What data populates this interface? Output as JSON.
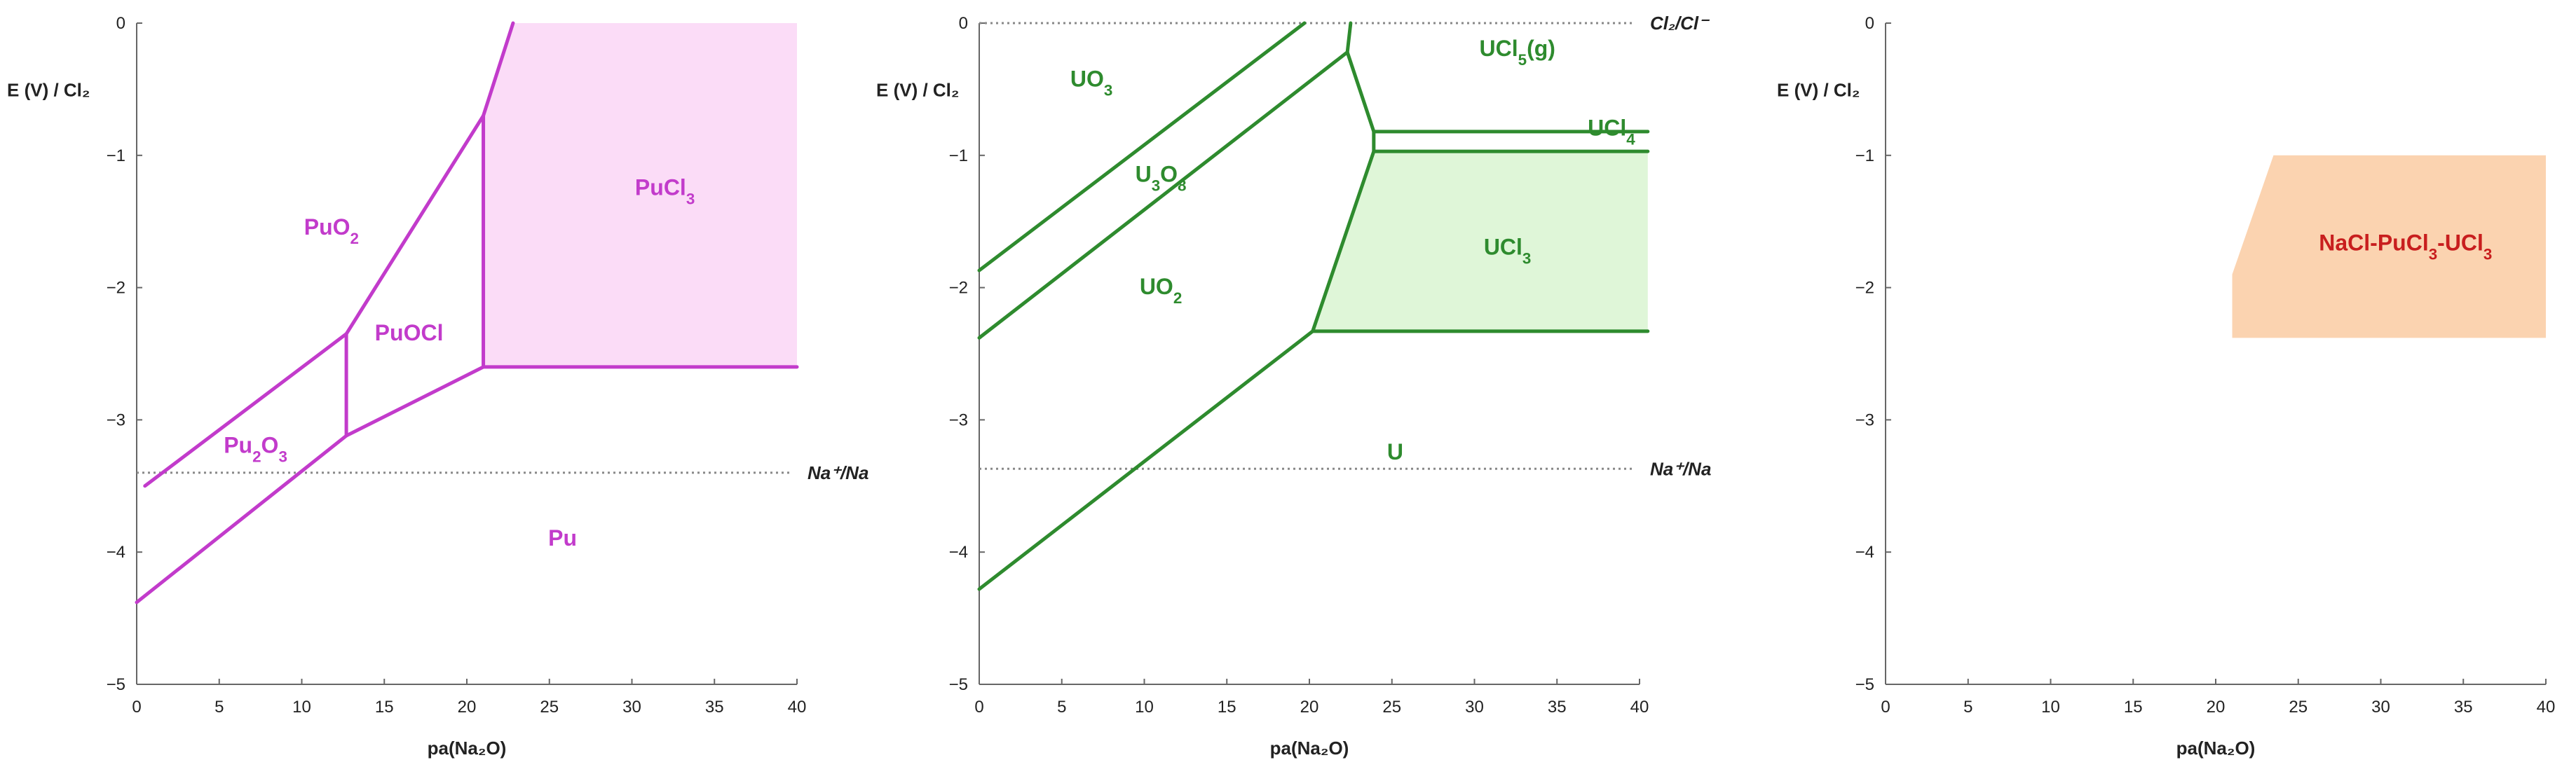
{
  "colors": {
    "pu": "#c23bcb",
    "pu_fill": "#fbdcf7",
    "u": "#2e8b2e",
    "u_fill": "#dff6d8",
    "salt_fill": "#fbd3b0",
    "salt_text": "#c81e1e",
    "axis": "#666666",
    "dotted": "#888888"
  },
  "chart_data": [
    {
      "type": "line",
      "name": "Pu",
      "xlabel": "pa(Na₂O)",
      "ylabel": "E (V) / Cl₂",
      "xlim": [
        0,
        40
      ],
      "ylim": [
        -5,
        0
      ],
      "xticks": [
        "0",
        "5",
        "10",
        "15",
        "20",
        "25",
        "30",
        "35",
        "40"
      ],
      "yticks": [
        "0",
        "−1",
        "−2",
        "−3",
        "−4",
        "−5"
      ],
      "reference_lines": [
        {
          "y": -3.4,
          "label": "Na⁺/Na"
        }
      ],
      "stable_region": {
        "points": [
          [
            21,
            -0.7
          ],
          [
            22.8,
            0
          ],
          [
            40,
            0
          ],
          [
            40,
            -2.6
          ],
          [
            21,
            -2.6
          ]
        ]
      },
      "boundaries": [
        {
          "points": [
            [
              0.5,
              -3.5
            ],
            [
              12.7,
              -2.35
            ],
            [
              21,
              -0.7
            ],
            [
              22.8,
              0
            ]
          ]
        },
        {
          "points": [
            [
              12.7,
              -2.35
            ],
            [
              12.7,
              -3.12
            ]
          ]
        },
        {
          "points": [
            [
              0,
              -4.38
            ],
            [
              12.7,
              -3.12
            ],
            [
              21,
              -2.6
            ],
            [
              40,
              -2.6
            ]
          ]
        },
        {
          "points": [
            [
              21,
              -0.7
            ],
            [
              21,
              -2.6
            ]
          ]
        }
      ],
      "regions": [
        {
          "label": "PuO",
          "sub": "2",
          "x": 11.8,
          "y": -1.6
        },
        {
          "label": "PuCl",
          "sub": "3",
          "x": 32,
          "y": -1.3
        },
        {
          "label": "PuOCl",
          "sub": "",
          "x": 16.5,
          "y": -2.4
        },
        {
          "label": "Pu",
          "sub": "2",
          "label2": "O",
          "sub2": "3",
          "x": 7.2,
          "y": -3.25
        },
        {
          "label": "Pu",
          "sub": "",
          "x": 25.8,
          "y": -3.95
        }
      ]
    },
    {
      "type": "line",
      "name": "U",
      "xlabel": "pa(Na₂O)",
      "ylabel": "E (V) / Cl₂",
      "xlim": [
        0,
        40
      ],
      "ylim": [
        -5,
        0
      ],
      "xticks": [
        "0",
        "5",
        "10",
        "15",
        "20",
        "25",
        "30",
        "35",
        "40"
      ],
      "yticks": [
        "0",
        "−1",
        "−2",
        "−3",
        "−4",
        "−5"
      ],
      "reference_lines": [
        {
          "y": 0,
          "label": "Cl₂/Cl⁻"
        },
        {
          "y": -3.37,
          "label": "Na⁺/Na"
        }
      ],
      "stable_region": {
        "points": [
          [
            23.9,
            -0.97
          ],
          [
            40.5,
            -0.97
          ],
          [
            40.5,
            -2.33
          ],
          [
            20.2,
            -2.33
          ]
        ]
      },
      "boundaries": [
        {
          "points": [
            [
              0,
              -1.87
            ],
            [
              19.7,
              0
            ]
          ]
        },
        {
          "points": [
            [
              0,
              -2.38
            ],
            [
              22.3,
              -0.22
            ],
            [
              22.5,
              0
            ]
          ]
        },
        {
          "points": [
            [
              22.3,
              -0.22
            ],
            [
              23.9,
              -0.82
            ],
            [
              23.9,
              -0.97
            ],
            [
              20.2,
              -2.33
            ],
            [
              0,
              -4.28
            ]
          ]
        },
        {
          "points": [
            [
              23.9,
              -0.82
            ],
            [
              40.5,
              -0.82
            ]
          ]
        },
        {
          "points": [
            [
              23.9,
              -0.97
            ],
            [
              40.5,
              -0.97
            ]
          ]
        },
        {
          "points": [
            [
              20.2,
              -2.33
            ],
            [
              40.5,
              -2.33
            ]
          ]
        }
      ],
      "regions": [
        {
          "label": "UO",
          "sub": "3",
          "x": 6.8,
          "y": -0.48
        },
        {
          "label": "U",
          "sub": "3",
          "label2": "O",
          "sub2": "8",
          "x": 11,
          "y": -1.2
        },
        {
          "label": "UO",
          "sub": "2",
          "x": 11,
          "y": -2.05
        },
        {
          "label": "UCl",
          "sub": "5",
          "label2": "(g)",
          "sub2": "",
          "x": 32.6,
          "y": -0.25
        },
        {
          "label": "UCl",
          "sub": "4",
          "x": 38.3,
          "y": -0.85
        },
        {
          "label": "UCl",
          "sub": "3",
          "x": 32,
          "y": -1.75
        },
        {
          "label": "U",
          "sub": "",
          "x": 25.2,
          "y": -3.3
        }
      ]
    },
    {
      "type": "area",
      "name": "NaCl-PuCl3-UCl3",
      "xlabel": "pa(Na₂O)",
      "ylabel": "E (V) / Cl₂",
      "xlim": [
        0,
        40
      ],
      "ylim": [
        -5,
        0
      ],
      "xticks": [
        "0",
        "5",
        "10",
        "15",
        "20",
        "25",
        "30",
        "35",
        "40"
      ],
      "yticks": [
        "0",
        "−1",
        "−2",
        "−3",
        "−4",
        "−5"
      ],
      "stable_region": {
        "points": [
          [
            23.5,
            -1.0
          ],
          [
            40,
            -1.0
          ],
          [
            40,
            -2.38
          ],
          [
            21,
            -2.38
          ],
          [
            21,
            -1.9
          ]
        ]
      },
      "regions": [
        {
          "label": "NaCl-PuCl",
          "sub": "3",
          "label2": "-UCl",
          "sub2": "3",
          "x": 31.5,
          "y": -1.72
        }
      ]
    }
  ]
}
